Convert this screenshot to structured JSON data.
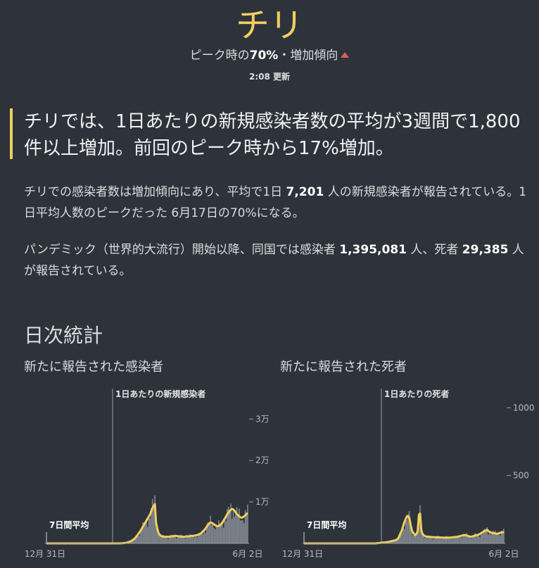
{
  "header": {
    "title": "チリ",
    "sub_prefix": "ピーク時の",
    "sub_pct": "70%",
    "sub_suffix": "・増加傾向",
    "updated": "2:08 更新"
  },
  "headline": "チリでは、1日あたりの新規感染者数の平均が3週間で1,800件以上増加。前回のピーク時から17%増加。",
  "paragraph1": {
    "a": "チリでの感染者数は増加傾向にあり、平均で1日 ",
    "b": "7,201",
    "c": " 人の新規感染者が報告されている。1日平均人数のピークだった 6月17日の70%になる。"
  },
  "paragraph2": {
    "a": "パンデミック（世界的大流行）開始以降、同国では感染者 ",
    "b": "1,395,081",
    "c": " 人、死者 ",
    "d": "29,385",
    "e": " 人が報告されている。"
  },
  "section_title": "日次統計",
  "colors": {
    "accent": "#f0cf5e",
    "up": "#e05a5a",
    "bars": "#8a8f98",
    "background": "#2d323b"
  },
  "chart_data": [
    {
      "type": "area",
      "title": "新たに報告された感染者",
      "annotation": "1日あたりの新規感染者",
      "avg_label": "7日間平均",
      "x_labels": [
        "12月 31日",
        "6月 2日"
      ],
      "y_ticks": [
        10000,
        20000,
        30000
      ],
      "y_tick_labels": [
        "1万",
        "2万",
        "3万"
      ],
      "ylim": [
        0,
        36000
      ],
      "avg_series": [
        0,
        0,
        0,
        0,
        0,
        0,
        0,
        0,
        0,
        0,
        0,
        0,
        0,
        0,
        0,
        0,
        0,
        0,
        0,
        0,
        0,
        0,
        0,
        0,
        0,
        0,
        0,
        0,
        0,
        0,
        0,
        0,
        0,
        0,
        0,
        0,
        0,
        0,
        0,
        0,
        0,
        0,
        0,
        0,
        0,
        0,
        0,
        0,
        0,
        0,
        0,
        0,
        0,
        0,
        0,
        0,
        0,
        0,
        0,
        0,
        0,
        10,
        20,
        40,
        60,
        100,
        150,
        200,
        300,
        400,
        500,
        700,
        900,
        1100,
        1400,
        1800,
        2200,
        2600,
        3000,
        3500,
        4000,
        4500,
        5000,
        5500,
        6000,
        6500,
        7000,
        7800,
        8500,
        9000,
        9500,
        5000,
        3500,
        2500,
        2000,
        1800,
        1700,
        1600,
        1600,
        1600,
        1600,
        1600,
        1600,
        1700,
        1700,
        1700,
        1800,
        1800,
        1800,
        1700,
        1700,
        1700,
        1600,
        1600,
        1600,
        1600,
        1700,
        1700,
        1700,
        1700,
        1800,
        1800,
        1800,
        1900,
        1900,
        2000,
        2100,
        2200,
        2400,
        2600,
        2900,
        3200,
        3600,
        4000,
        4500,
        4800,
        5000,
        5000,
        4800,
        4600,
        4400,
        4200,
        4100,
        4200,
        4400,
        4700,
        5000,
        5500,
        6000,
        6500,
        7000,
        7400,
        7800,
        8100,
        8300,
        8200,
        7900,
        7500,
        7100,
        6800,
        6500,
        6300,
        6200,
        6300,
        6500,
        6800,
        7100,
        7300
      ],
      "peak_date": "6月17日"
    },
    {
      "type": "area",
      "title": "新たに報告された死者",
      "annotation": "1日あたりの死者",
      "avg_label": "7日間平均",
      "x_labels": [
        "12月 31日",
        "6月 2日"
      ],
      "y_ticks": [
        500,
        1000
      ],
      "y_tick_labels": [
        "500",
        "1000"
      ],
      "ylim": [
        0,
        1100
      ],
      "avg_series": [
        0,
        0,
        0,
        0,
        0,
        0,
        0,
        0,
        0,
        0,
        0,
        0,
        0,
        0,
        0,
        0,
        0,
        0,
        0,
        0,
        0,
        0,
        0,
        0,
        0,
        0,
        0,
        0,
        0,
        0,
        0,
        0,
        0,
        0,
        0,
        0,
        0,
        0,
        0,
        0,
        0,
        0,
        0,
        0,
        0,
        0,
        0,
        0,
        0,
        0,
        0,
        0,
        0,
        0,
        0,
        0,
        0,
        0,
        0,
        0,
        0,
        1,
        2,
        3,
        4,
        5,
        6,
        7,
        8,
        9,
        10,
        12,
        14,
        16,
        18,
        20,
        22,
        25,
        30,
        40,
        60,
        80,
        100,
        130,
        160,
        180,
        200,
        200,
        190,
        140,
        100,
        80,
        70,
        60,
        70,
        90,
        210,
        220,
        100,
        70,
        60,
        55,
        50,
        50,
        48,
        48,
        47,
        46,
        45,
        45,
        45,
        44,
        44,
        44,
        43,
        43,
        43,
        42,
        42,
        42,
        42,
        42,
        43,
        43,
        44,
        45,
        46,
        47,
        48,
        50,
        52,
        55,
        57,
        60,
        62,
        60,
        58,
        55,
        52,
        50,
        50,
        52,
        55,
        58,
        60,
        62,
        65,
        70,
        75,
        80,
        85,
        90,
        95,
        100,
        92,
        85,
        80,
        78,
        76,
        74,
        72,
        70,
        72,
        75,
        78,
        80,
        82,
        85
      ]
    }
  ]
}
